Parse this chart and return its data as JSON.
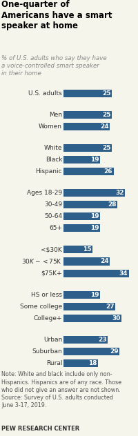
{
  "title": "One-quarter of\nAmericans have a smart\nspeaker at home",
  "subtitle": "% of U.S. adults who say they have\na voice-controlled smart speaker\nin their home",
  "note": "Note: White and black include only non-\nHispanics. Hispanics are of any race. Those\nwho did not give an answer are not shown.\nSource: Survey of U.S. adults conducted\nJune 3-17, 2019.",
  "source": "PEW RESEARCH CENTER",
  "categories": [
    "U.S. adults",
    "Men",
    "Women",
    "White",
    "Black",
    "Hispanic",
    "Ages 18-29",
    "30-49",
    "50-64",
    "65+",
    "<$30K",
    "$30K-<$75K",
    "$75K+",
    "HS or less",
    "Some college",
    "College+",
    "Urban",
    "Suburban",
    "Rural"
  ],
  "values": [
    25,
    25,
    24,
    25,
    19,
    26,
    32,
    28,
    19,
    19,
    15,
    24,
    34,
    19,
    27,
    30,
    23,
    29,
    18
  ],
  "group_starts": [
    0,
    1,
    3,
    6,
    10,
    13,
    16
  ],
  "bar_color": "#2e5f8a",
  "text_color": "#ffffff",
  "label_color": "#333333",
  "title_color": "#000000",
  "subtitle_color": "#888888",
  "background_color": "#f5f5eb"
}
